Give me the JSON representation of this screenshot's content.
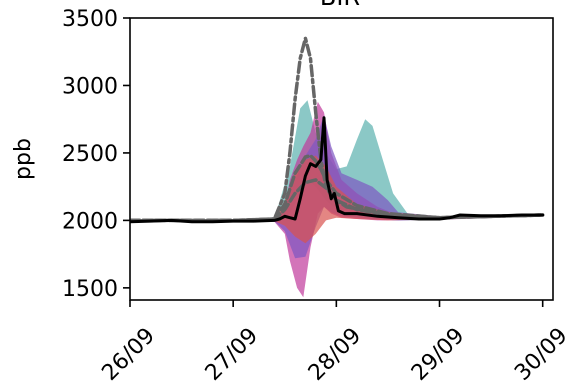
{
  "chart_data": {
    "type": "line",
    "title": "BIR",
    "xlabel": "",
    "ylabel": "ppb",
    "xlim": [
      0.0,
      4.1
    ],
    "ylim": [
      1410,
      3500
    ],
    "x_ticks": [
      {
        "label": "26/09",
        "value": 0
      },
      {
        "label": "27/09",
        "value": 1
      },
      {
        "label": "28/09",
        "value": 2
      },
      {
        "label": "29/09",
        "value": 3
      },
      {
        "label": "30/09",
        "value": 4
      }
    ],
    "y_ticks": [
      {
        "label": "1500",
        "value": 1500
      },
      {
        "label": "2000",
        "value": 2000
      },
      {
        "label": "2500",
        "value": 2500
      },
      {
        "label": "3000",
        "value": 3000
      },
      {
        "label": "3500",
        "value": 3500
      }
    ],
    "colors": {
      "teal": "#5ab0ae",
      "purple": "#7e57c2",
      "magenta": "#c0399b",
      "red": "#d9534f",
      "gray": "#666666",
      "observed": "#000000"
    },
    "bands": [
      {
        "color": "teal",
        "x": [
          0.0,
          1.0,
          1.4,
          1.55,
          1.65,
          1.72,
          1.8,
          1.9,
          2.0,
          2.1,
          2.2,
          2.28,
          2.35,
          2.45,
          2.55,
          2.7,
          3.0,
          4.0
        ],
        "upper": [
          2000,
          2000,
          2010,
          2400,
          2830,
          2890,
          2650,
          2500,
          2380,
          2400,
          2600,
          2750,
          2700,
          2450,
          2200,
          2040,
          2030,
          2040
        ],
        "lower": [
          1990,
          1990,
          1990,
          2050,
          2200,
          2300,
          2250,
          2150,
          2080,
          2060,
          2050,
          2040,
          2030,
          2010,
          2000,
          2000,
          2010,
          2030
        ]
      },
      {
        "color": "magenta",
        "x": [
          0.0,
          1.0,
          1.4,
          1.5,
          1.55,
          1.62,
          1.68,
          1.75,
          1.82,
          1.88,
          1.95,
          2.05,
          2.2,
          2.4,
          2.6,
          3.0,
          4.0
        ],
        "upper": [
          2000,
          2000,
          2010,
          2100,
          2300,
          2450,
          2550,
          2650,
          2880,
          2800,
          2500,
          2300,
          2200,
          2100,
          2040,
          2030,
          2040
        ],
        "lower": [
          1990,
          1990,
          1990,
          1900,
          1700,
          1500,
          1430,
          1800,
          2050,
          2100,
          2050,
          2020,
          2010,
          2000,
          2000,
          2005,
          2030
        ]
      },
      {
        "color": "purple",
        "x": [
          0.0,
          1.0,
          1.4,
          1.5,
          1.6,
          1.7,
          1.8,
          1.88,
          1.95,
          2.05,
          2.2,
          2.35,
          2.5,
          2.6,
          3.0,
          4.0
        ],
        "upper": [
          2000,
          2000,
          2010,
          2100,
          2300,
          2480,
          2600,
          2780,
          2550,
          2350,
          2300,
          2250,
          2150,
          2060,
          2030,
          2040
        ],
        "lower": [
          1995,
          1995,
          1995,
          1920,
          1720,
          1730,
          1950,
          2100,
          2060,
          2030,
          2020,
          2010,
          2005,
          2000,
          2010,
          2035
        ]
      },
      {
        "color": "red",
        "x": [
          0.0,
          1.0,
          1.4,
          1.5,
          1.6,
          1.7,
          1.8,
          1.9,
          2.0,
          2.2,
          2.5,
          3.0,
          4.0
        ],
        "upper": [
          2000,
          2000,
          2010,
          2150,
          2350,
          2450,
          2480,
          2400,
          2250,
          2120,
          2060,
          2030,
          2040
        ],
        "lower": [
          1995,
          1995,
          1995,
          1960,
          1880,
          1830,
          1900,
          2000,
          2020,
          2010,
          2000,
          2010,
          2035
        ]
      }
    ],
    "series": [
      {
        "style": "dashdot",
        "color": "gray",
        "x": [
          0.0,
          0.5,
          1.0,
          1.4,
          1.5,
          1.55,
          1.6,
          1.65,
          1.7,
          1.75,
          1.8,
          1.85,
          1.9,
          2.0,
          2.1,
          2.3,
          2.5,
          3.0,
          4.0
        ],
        "y": [
          2000,
          2000,
          2000,
          2010,
          2200,
          2500,
          2900,
          3200,
          3350,
          3200,
          2800,
          2450,
          2250,
          2150,
          2100,
          2070,
          2040,
          2020,
          2040
        ]
      },
      {
        "style": "dashed",
        "color": "gray",
        "x": [
          0.0,
          0.5,
          1.0,
          1.4,
          1.5,
          1.6,
          1.7,
          1.75,
          1.8,
          1.85,
          1.9,
          2.0,
          2.2,
          2.5,
          3.0,
          4.0
        ],
        "y": [
          2000,
          2000,
          2000,
          2010,
          2120,
          2350,
          2470,
          2480,
          2440,
          2380,
          2300,
          2200,
          2110,
          2050,
          2020,
          2040
        ]
      },
      {
        "style": "dashed",
        "color": "gray",
        "x": [
          0.0,
          0.5,
          1.0,
          1.4,
          1.5,
          1.6,
          1.7,
          1.8,
          1.9,
          2.0,
          2.2,
          2.5,
          3.0,
          4.0
        ],
        "y": [
          2000,
          2000,
          2000,
          2005,
          2080,
          2200,
          2280,
          2300,
          2240,
          2150,
          2080,
          2040,
          2020,
          2040
        ]
      },
      {
        "style": "solid",
        "color": "observed",
        "x": [
          0.0,
          0.2,
          0.4,
          0.6,
          0.8,
          1.0,
          1.2,
          1.4,
          1.45,
          1.5,
          1.55,
          1.6,
          1.65,
          1.7,
          1.75,
          1.8,
          1.85,
          1.88,
          1.91,
          1.95,
          1.98,
          2.02,
          2.08,
          2.2,
          2.4,
          2.6,
          2.8,
          3.0,
          3.1,
          3.2,
          3.4,
          3.6,
          3.8,
          4.0
        ],
        "y": [
          1990,
          1995,
          2000,
          1990,
          1990,
          1995,
          1995,
          2000,
          2010,
          2030,
          2020,
          2010,
          2160,
          2330,
          2420,
          2400,
          2450,
          2760,
          2300,
          2160,
          2200,
          2070,
          2050,
          2050,
          2030,
          2020,
          2010,
          2010,
          2020,
          2040,
          2035,
          2035,
          2040,
          2040
        ]
      }
    ]
  }
}
